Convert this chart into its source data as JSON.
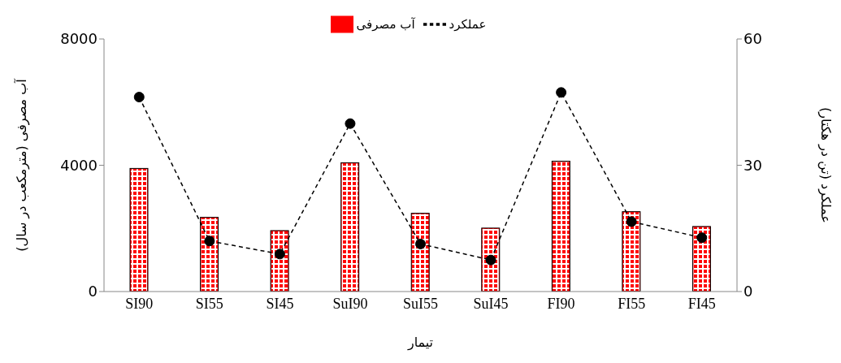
{
  "chart_data": {
    "type": "bar",
    "xlabel": "تیمار",
    "ylabel": "آب مصرفی (مترمکعب در سال)",
    "y2label": "عملکرد (تن در هکتار)",
    "categories": [
      "SI90",
      "SI55",
      "SI45",
      "SuI90",
      "SuI55",
      "SuI45",
      "FI90",
      "FI55",
      "FI45"
    ],
    "series": [
      {
        "name": "آب مصرفی",
        "color": "#ff0000",
        "values": [
          3900,
          2350,
          1930,
          4080,
          2480,
          2010,
          4130,
          2530,
          2060
        ]
      },
      {
        "name": "عملکرد",
        "type": "line",
        "axis": "y2",
        "color": "#000000",
        "marker": "circle",
        "line_style": "dashed",
        "values": [
          46.2,
          12.0,
          8.9,
          39.9,
          11.3,
          7.5,
          47.3,
          16.6,
          12.8
        ]
      }
    ],
    "ylim": [
      0,
      8000
    ],
    "yticks": [
      0,
      4000,
      8000
    ],
    "y2lim": [
      0,
      60
    ],
    "y2ticks": [
      0,
      30,
      60
    ],
    "legend": "top"
  }
}
